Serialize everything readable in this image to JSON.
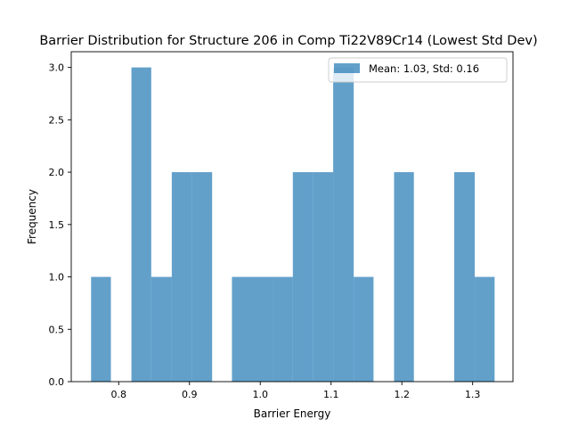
{
  "chart_data": {
    "type": "bar",
    "title": "Barrier Distribution for Structure 206 in Comp Ti22V89Cr14 (Lowest Std Dev)",
    "xlabel": "Barrier Energy",
    "ylabel": "Frequency",
    "xlim": [
      0.733,
      1.357
    ],
    "ylim": [
      0,
      3.15
    ],
    "x_ticks": [
      0.8,
      0.9,
      1.0,
      1.1,
      1.2,
      1.3
    ],
    "x_tick_labels": [
      "0.8",
      "0.9",
      "1.0",
      "1.1",
      "1.2",
      "1.3"
    ],
    "y_ticks": [
      0.0,
      0.5,
      1.0,
      1.5,
      2.0,
      2.5,
      3.0
    ],
    "y_tick_labels": [
      "0.0",
      "0.5",
      "1.0",
      "1.5",
      "2.0",
      "2.5",
      "3.0"
    ],
    "bin_edges": [
      0.761,
      0.789,
      0.818,
      0.846,
      0.875,
      0.903,
      0.932,
      0.96,
      0.989,
      1.018,
      1.046,
      1.075,
      1.103,
      1.132,
      1.16,
      1.189,
      1.217,
      1.246,
      1.274,
      1.303,
      1.331
    ],
    "counts": [
      1,
      0,
      3,
      1,
      2,
      2,
      0,
      1,
      1,
      1,
      2,
      2,
      3,
      1,
      0,
      2,
      0,
      0,
      2,
      1
    ],
    "bar_color": "#1f77b4",
    "bar_alpha": 0.7,
    "grid": false,
    "legend": {
      "placement": "top-right",
      "entries": [
        "Mean: 1.03, Std: 0.16"
      ]
    }
  }
}
